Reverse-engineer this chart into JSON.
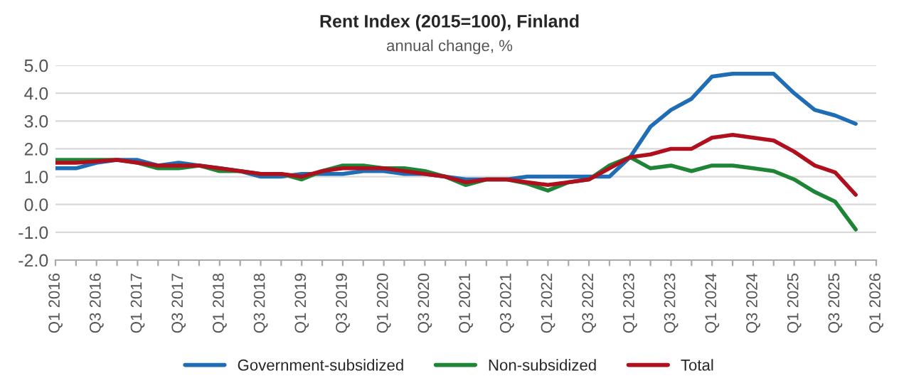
{
  "chart_data": {
    "type": "line",
    "title": "Rent Index (2015=100), Finland",
    "subtitle": "annual change, %",
    "categories": [
      "Q1 2016",
      null,
      "Q3 2016",
      null,
      "Q1 2017",
      null,
      "Q3 2017",
      null,
      "Q1 2018",
      null,
      "Q3 2018",
      null,
      "Q1 2019",
      null,
      "Q3 2019",
      null,
      "Q1 2020",
      null,
      "Q3 2020",
      null,
      "Q1 2021",
      null,
      "Q3 2021",
      null,
      "Q1 2022",
      null,
      "Q3 2022",
      null,
      "Q1 2023",
      null,
      "Q3 2023",
      null,
      "Q1 2024",
      null,
      "Q3 2024",
      null,
      "Q1 2025",
      null,
      "Q3 2025",
      null,
      "Q1 2026"
    ],
    "series": [
      {
        "name": "Government-subsidized",
        "color": "#1f6db5",
        "values": [
          1.3,
          1.3,
          1.5,
          1.6,
          1.6,
          1.4,
          1.5,
          1.4,
          1.3,
          1.2,
          1.0,
          1.0,
          1.1,
          1.1,
          1.1,
          1.2,
          1.2,
          1.1,
          1.1,
          1.0,
          0.9,
          0.9,
          0.9,
          1.0,
          1.0,
          1.0,
          1.0,
          1.0,
          1.7,
          2.8,
          3.4,
          3.8,
          4.6,
          4.7,
          4.7,
          4.7,
          4.0,
          3.4,
          3.2,
          2.9,
          null
        ]
      },
      {
        "name": "Non-subsidized",
        "color": "#1e8537",
        "values": [
          1.6,
          1.6,
          1.6,
          1.6,
          1.5,
          1.3,
          1.3,
          1.4,
          1.2,
          1.2,
          1.1,
          1.1,
          0.9,
          1.2,
          1.4,
          1.4,
          1.3,
          1.3,
          1.2,
          1.0,
          0.7,
          0.9,
          0.9,
          0.75,
          0.5,
          0.8,
          0.9,
          1.4,
          1.7,
          1.3,
          1.4,
          1.2,
          1.4,
          1.4,
          1.3,
          1.2,
          0.9,
          0.45,
          0.1,
          -0.9,
          null
        ]
      },
      {
        "name": "Total",
        "color": "#b0101e",
        "values": [
          1.5,
          1.5,
          1.55,
          1.6,
          1.5,
          1.4,
          1.4,
          1.4,
          1.3,
          1.2,
          1.1,
          1.1,
          1.0,
          1.2,
          1.3,
          1.3,
          1.3,
          1.2,
          1.1,
          1.0,
          0.8,
          0.9,
          0.9,
          0.8,
          0.7,
          0.8,
          0.9,
          1.3,
          1.7,
          1.8,
          2.0,
          2.0,
          2.4,
          2.5,
          2.4,
          2.3,
          1.9,
          1.4,
          1.15,
          0.35,
          null
        ]
      }
    ],
    "ylim": [
      -2,
      5
    ],
    "yticks": [
      {
        "value": -2,
        "label": "-2.0"
      },
      {
        "value": -1,
        "label": "-1.0"
      },
      {
        "value": 0,
        "label": "0.0"
      },
      {
        "value": 1,
        "label": "1.0"
      },
      {
        "value": 2,
        "label": "2.0"
      },
      {
        "value": 3,
        "label": "3.0"
      },
      {
        "value": 4,
        "label": "4.0"
      },
      {
        "value": 5,
        "label": "5.0"
      }
    ],
    "grid": "y",
    "legend": "bottom",
    "marker": "none",
    "line_style": "solid"
  }
}
